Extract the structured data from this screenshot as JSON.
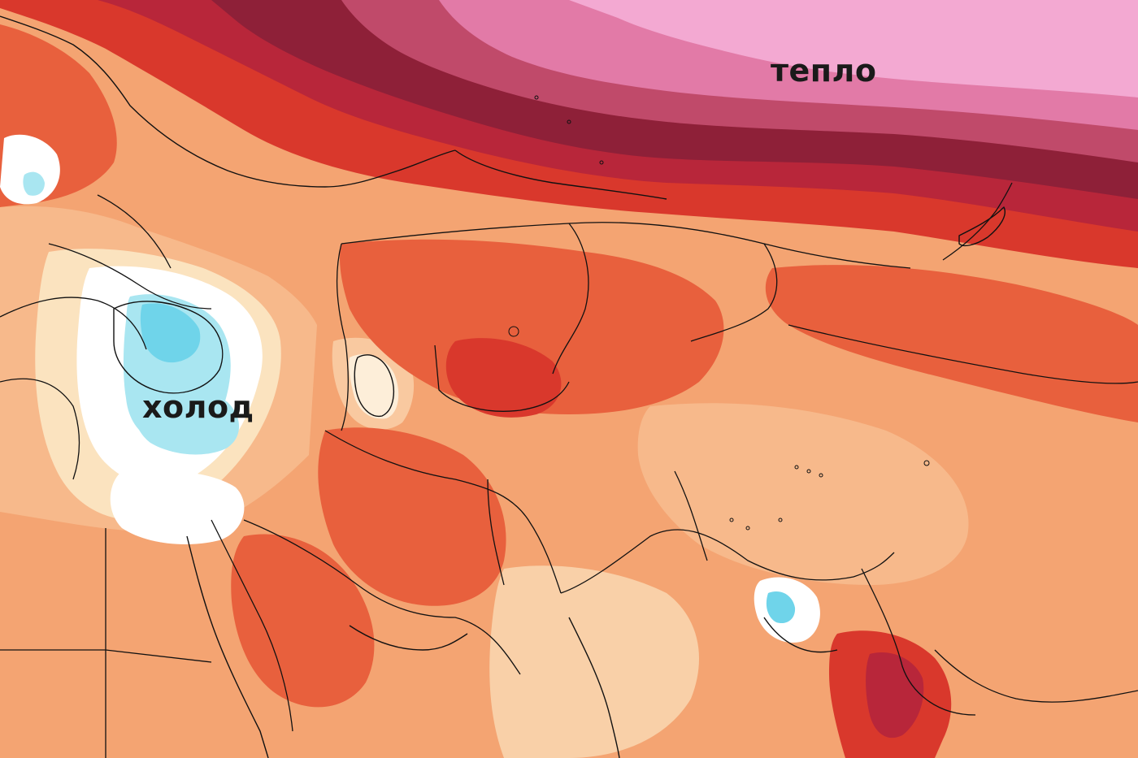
{
  "labels": {
    "warm": "тепло",
    "cold": "холод"
  },
  "palette": {
    "light_cream": "#fbe3bf",
    "light_orange": "#f7b98b",
    "orange": "#f2915f",
    "red_orange": "#e8603d",
    "red": "#d9382c",
    "dark_red": "#b8263a",
    "maroon": "#8e2038",
    "rose": "#c04a6a",
    "pink": "#e27aa7",
    "light_pink": "#f3a9d2",
    "white": "#ffffff",
    "light_blue": "#a9e6f1",
    "cyan": "#6fd4ea",
    "border_line": "#111111"
  }
}
